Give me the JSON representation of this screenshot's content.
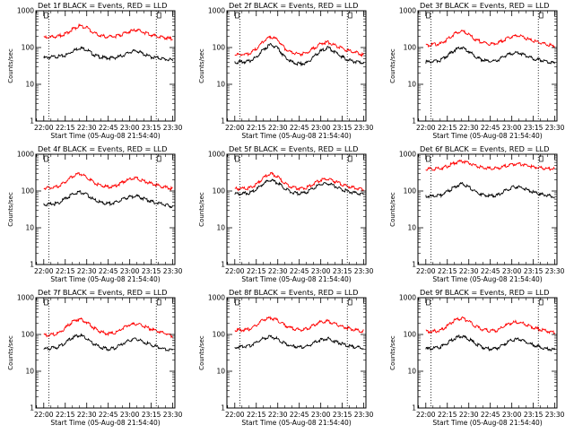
{
  "figure": {
    "background": "#ffffff",
    "axis_color": "#000000",
    "events_color": "#000000",
    "lld_color": "#ff0000"
  },
  "chart_data": [
    {
      "type": "line",
      "title": "Det 1f BLACK = Events, RED = LLD",
      "xlabel": "Start Time (05-Aug-08 21:54:40)",
      "ylabel": "Counts/sec",
      "y_scale": "log",
      "ylim": [
        1,
        1000
      ],
      "y_ticks": [
        1,
        10,
        100,
        1000
      ],
      "x_ticks": [
        "22:00",
        "22:15",
        "22:30",
        "22:45",
        "23:00",
        "23:15",
        "23:30"
      ],
      "x": [
        "22:00",
        "22:05",
        "22:10",
        "22:15",
        "22:20",
        "22:25",
        "22:30",
        "22:35",
        "22:40",
        "22:45",
        "22:50",
        "22:55",
        "23:00",
        "23:05",
        "23:10",
        "23:15",
        "23:20",
        "23:25",
        "23:30"
      ],
      "series": [
        {
          "name": "Events",
          "color": "#000000",
          "values": [
            52,
            55,
            57,
            60,
            80,
            98,
            88,
            63,
            54,
            52,
            53,
            60,
            75,
            82,
            65,
            55,
            52,
            48,
            45
          ]
        },
        {
          "name": "LLD",
          "color": "#ff0000",
          "values": [
            185,
            190,
            200,
            235,
            310,
            390,
            350,
            245,
            210,
            195,
            200,
            230,
            275,
            300,
            255,
            220,
            200,
            185,
            170
          ]
        }
      ]
    },
    {
      "type": "line",
      "title": "Det 2f BLACK = Events, RED = LLD",
      "xlabel": "Start Time (05-Aug-08 21:54:40)",
      "ylabel": "Counts/sec",
      "y_scale": "log",
      "ylim": [
        1,
        1000
      ],
      "y_ticks": [
        1,
        10,
        100,
        1000
      ],
      "x_ticks": [
        "22:00",
        "22:15",
        "22:30",
        "22:45",
        "23:00",
        "23:15",
        "23:30"
      ],
      "x": [
        "22:00",
        "22:05",
        "22:10",
        "22:15",
        "22:20",
        "22:25",
        "22:30",
        "22:35",
        "22:40",
        "22:45",
        "22:50",
        "22:55",
        "23:00",
        "23:05",
        "23:10",
        "23:15",
        "23:20",
        "23:25",
        "23:30"
      ],
      "series": [
        {
          "name": "Events",
          "color": "#000000",
          "values": [
            40,
            40,
            42,
            55,
            90,
            120,
            95,
            55,
            40,
            36,
            38,
            55,
            80,
            100,
            75,
            55,
            45,
            40,
            38
          ]
        },
        {
          "name": "LLD",
          "color": "#ff0000",
          "values": [
            65,
            65,
            68,
            90,
            150,
            200,
            160,
            95,
            72,
            66,
            70,
            95,
            130,
            140,
            115,
            95,
            80,
            72,
            62
          ]
        }
      ]
    },
    {
      "type": "line",
      "title": "Det 3f BLACK = Events, RED = LLD",
      "xlabel": "Start Time (05-Aug-08 21:54:40)",
      "ylabel": "Counts/sec",
      "y_scale": "log",
      "ylim": [
        1,
        1000
      ],
      "y_ticks": [
        1,
        10,
        100,
        1000
      ],
      "x_ticks": [
        "22:00",
        "22:15",
        "22:30",
        "22:45",
        "23:00",
        "23:15",
        "23:30"
      ],
      "x": [
        "22:00",
        "22:05",
        "22:10",
        "22:15",
        "22:20",
        "22:25",
        "22:30",
        "22:35",
        "22:40",
        "22:45",
        "22:50",
        "22:55",
        "23:00",
        "23:05",
        "23:10",
        "23:15",
        "23:20",
        "23:25",
        "23:30"
      ],
      "series": [
        {
          "name": "Events",
          "color": "#000000",
          "values": [
            40,
            42,
            45,
            60,
            85,
            100,
            80,
            55,
            45,
            42,
            45,
            58,
            70,
            72,
            60,
            50,
            45,
            40,
            38
          ]
        },
        {
          "name": "LLD",
          "color": "#ff0000",
          "values": [
            115,
            120,
            125,
            165,
            235,
            285,
            225,
            160,
            135,
            125,
            130,
            165,
            200,
            210,
            175,
            150,
            135,
            120,
            110
          ]
        }
      ]
    },
    {
      "type": "line",
      "title": "Det 4f BLACK = Events, RED = LLD",
      "xlabel": "Start Time (05-Aug-08 21:54:40)",
      "ylabel": "Counts/sec",
      "y_scale": "log",
      "ylim": [
        1,
        1000
      ],
      "y_ticks": [
        1,
        10,
        100,
        1000
      ],
      "x_ticks": [
        "22:00",
        "22:15",
        "22:30",
        "22:45",
        "23:00",
        "23:15",
        "23:30"
      ],
      "x": [
        "22:00",
        "22:05",
        "22:10",
        "22:15",
        "22:20",
        "22:25",
        "22:30",
        "22:35",
        "22:40",
        "22:45",
        "22:50",
        "22:55",
        "23:00",
        "23:05",
        "23:10",
        "23:15",
        "23:20",
        "23:25",
        "23:30"
      ],
      "series": [
        {
          "name": "Events",
          "color": "#000000",
          "values": [
            42,
            44,
            46,
            62,
            80,
            95,
            80,
            58,
            48,
            45,
            48,
            60,
            70,
            72,
            62,
            52,
            46,
            42,
            38
          ]
        },
        {
          "name": "LLD",
          "color": "#ff0000",
          "values": [
            120,
            125,
            130,
            175,
            250,
            300,
            240,
            170,
            140,
            130,
            135,
            175,
            210,
            220,
            185,
            160,
            140,
            125,
            115
          ]
        }
      ]
    },
    {
      "type": "line",
      "title": "Det 5f BLACK = Events, RED = LLD",
      "xlabel": "Start Time (05-Aug-08 21:54:40)",
      "ylabel": "Counts/sec",
      "y_scale": "log",
      "ylim": [
        1,
        1000
      ],
      "y_ticks": [
        1,
        10,
        100,
        1000
      ],
      "x_ticks": [
        "22:00",
        "22:15",
        "22:30",
        "22:45",
        "23:00",
        "23:15",
        "23:30"
      ],
      "x": [
        "22:00",
        "22:05",
        "22:10",
        "22:15",
        "22:20",
        "22:25",
        "22:30",
        "22:35",
        "22:40",
        "22:45",
        "22:50",
        "22:55",
        "23:00",
        "23:05",
        "23:10",
        "23:15",
        "23:20",
        "23:25",
        "23:30"
      ],
      "series": [
        {
          "name": "Events",
          "color": "#000000",
          "values": [
            85,
            86,
            88,
            110,
            160,
            200,
            165,
            115,
            90,
            85,
            90,
            120,
            150,
            160,
            135,
            110,
            95,
            88,
            80
          ]
        },
        {
          "name": "LLD",
          "color": "#ff0000",
          "values": [
            115,
            116,
            120,
            150,
            230,
            300,
            240,
            160,
            125,
            118,
            122,
            160,
            200,
            215,
            180,
            150,
            130,
            120,
            110
          ]
        }
      ]
    },
    {
      "type": "line",
      "title": "Det 6f BLACK = Events, RED = LLD",
      "xlabel": "Start Time (05-Aug-08 21:54:40)",
      "ylabel": "Counts/sec",
      "y_scale": "log",
      "ylim": [
        1,
        1000
      ],
      "y_ticks": [
        1,
        10,
        100,
        1000
      ],
      "x_ticks": [
        "22:00",
        "22:15",
        "22:30",
        "22:45",
        "23:00",
        "23:15",
        "23:30"
      ],
      "x": [
        "22:00",
        "22:05",
        "22:10",
        "22:15",
        "22:20",
        "22:25",
        "22:30",
        "22:35",
        "22:40",
        "22:45",
        "22:50",
        "22:55",
        "23:00",
        "23:05",
        "23:10",
        "23:15",
        "23:20",
        "23:25",
        "23:30"
      ],
      "series": [
        {
          "name": "Events",
          "color": "#000000",
          "values": [
            72,
            73,
            75,
            95,
            130,
            160,
            130,
            95,
            78,
            73,
            76,
            100,
            125,
            130,
            110,
            92,
            82,
            76,
            70
          ]
        },
        {
          "name": "LLD",
          "color": "#ff0000",
          "values": [
            400,
            400,
            410,
            470,
            580,
            650,
            580,
            480,
            430,
            410,
            415,
            470,
            530,
            550,
            500,
            450,
            420,
            405,
            395
          ]
        }
      ]
    },
    {
      "type": "line",
      "title": "Det 7f BLACK = Events, RED = LLD",
      "xlabel": "Start Time (05-Aug-08 21:54:40)",
      "ylabel": "Counts/sec",
      "y_scale": "log",
      "ylim": [
        1,
        1000
      ],
      "y_ticks": [
        1,
        10,
        100,
        1000
      ],
      "x_ticks": [
        "22:00",
        "22:15",
        "22:30",
        "22:45",
        "23:00",
        "23:15",
        "23:30"
      ],
      "x": [
        "22:00",
        "22:05",
        "22:10",
        "22:15",
        "22:20",
        "22:25",
        "22:30",
        "22:35",
        "22:40",
        "22:45",
        "22:50",
        "22:55",
        "23:00",
        "23:05",
        "23:10",
        "23:15",
        "23:20",
        "23:25",
        "23:30"
      ],
      "series": [
        {
          "name": "Events",
          "color": "#000000",
          "values": [
            40,
            42,
            45,
            60,
            82,
            95,
            78,
            55,
            44,
            40,
            43,
            56,
            70,
            75,
            62,
            52,
            45,
            40,
            36
          ]
        },
        {
          "name": "LLD",
          "color": "#ff0000",
          "values": [
            95,
            98,
            105,
            150,
            220,
            270,
            215,
            150,
            115,
            105,
            110,
            150,
            185,
            195,
            165,
            140,
            120,
            105,
            90
          ]
        }
      ]
    },
    {
      "type": "line",
      "title": "Det 8f BLACK = Events, RED = LLD",
      "xlabel": "Start Time (05-Aug-08 21:54:40)",
      "ylabel": "Counts/sec",
      "y_scale": "log",
      "ylim": [
        1,
        1000
      ],
      "y_ticks": [
        1,
        10,
        100,
        1000
      ],
      "x_ticks": [
        "22:00",
        "22:15",
        "22:30",
        "22:45",
        "23:00",
        "23:15",
        "23:30"
      ],
      "x": [
        "22:00",
        "22:05",
        "22:10",
        "22:15",
        "22:20",
        "22:25",
        "22:30",
        "22:35",
        "22:40",
        "22:45",
        "22:50",
        "22:55",
        "23:00",
        "23:05",
        "23:10",
        "23:15",
        "23:20",
        "23:25",
        "23:30"
      ],
      "series": [
        {
          "name": "Events",
          "color": "#000000",
          "values": [
            45,
            46,
            48,
            60,
            78,
            88,
            75,
            56,
            48,
            45,
            47,
            58,
            72,
            78,
            65,
            55,
            48,
            45,
            42
          ]
        },
        {
          "name": "LLD",
          "color": "#ff0000",
          "values": [
            130,
            132,
            138,
            180,
            250,
            290,
            240,
            175,
            145,
            135,
            140,
            180,
            220,
            230,
            195,
            165,
            145,
            132,
            120
          ]
        }
      ]
    },
    {
      "type": "line",
      "title": "Det 9f BLACK = Events, RED = LLD",
      "xlabel": "Start Time (05-Aug-08 21:54:40)",
      "ylabel": "Counts/sec",
      "y_scale": "log",
      "ylim": [
        1,
        1000
      ],
      "y_ticks": [
        1,
        10,
        100,
        1000
      ],
      "x_ticks": [
        "22:00",
        "22:15",
        "22:30",
        "22:45",
        "23:00",
        "23:15",
        "23:30"
      ],
      "x": [
        "22:00",
        "22:05",
        "22:10",
        "22:15",
        "22:20",
        "22:25",
        "22:30",
        "22:35",
        "22:40",
        "22:45",
        "22:50",
        "22:55",
        "23:00",
        "23:05",
        "23:10",
        "23:15",
        "23:20",
        "23:25",
        "23:30"
      ],
      "series": [
        {
          "name": "Events",
          "color": "#000000",
          "values": [
            40,
            42,
            45,
            58,
            78,
            90,
            75,
            55,
            44,
            40,
            43,
            56,
            70,
            75,
            62,
            52,
            45,
            40,
            38
          ]
        },
        {
          "name": "LLD",
          "color": "#ff0000",
          "values": [
            120,
            122,
            128,
            170,
            240,
            280,
            230,
            165,
            135,
            125,
            130,
            170,
            210,
            220,
            185,
            155,
            135,
            122,
            112
          ]
        }
      ]
    }
  ]
}
